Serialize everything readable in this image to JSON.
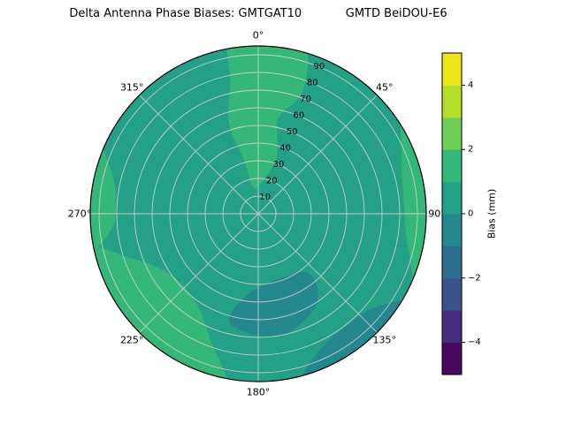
{
  "header": {
    "title": "Delta Antenna Phase Biases: GMTGAT10            GMTD BeiDOU-E6"
  },
  "chart_data": {
    "type": "heatmap",
    "projection": "polar",
    "title_left": "Delta Antenna Phase Biases: GMTGAT10",
    "title_right": "GMTD BeiDOU-E6",
    "angular_tick_labels": [
      "0°",
      "45°",
      "90°",
      "135°",
      "180°",
      "225°",
      "270°",
      "315°"
    ],
    "angular_tick_step_deg": 45,
    "radial_tick_labels": [
      "10",
      "20",
      "30",
      "40",
      "50",
      "60",
      "70",
      "80",
      "90"
    ],
    "radial_label_angle_deg": 22.5,
    "radial_axis_max": 95,
    "grid_color": "#d4d4d4",
    "outline_color": "#000000",
    "colorbar": {
      "label": "Bias (mm)",
      "range": [
        -5,
        5
      ],
      "levels": [
        -5,
        -4,
        -3,
        -2,
        -1,
        0,
        1,
        2,
        3,
        4,
        5
      ],
      "tick_values": [
        -4,
        -2,
        0,
        2,
        4
      ],
      "tick_labels": [
        "−4",
        "−2",
        "0",
        "2",
        "4"
      ],
      "band_colors_bottom_to_top": [
        "#46085c",
        "#472d7d",
        "#3a538b",
        "#2c6e8e",
        "#24878e",
        "#24a086",
        "#35b779",
        "#6ece58",
        "#b5de2b",
        "#ece51b"
      ]
    },
    "field": {
      "base_band_mm": "0 to 1",
      "base_color": "#24a086",
      "patches": [
        {
          "band_mm": "1 to 2",
          "color": "#35b779",
          "points_az_r": [
            [
              349,
              0.16
            ],
            [
              8,
              0.2
            ],
            [
              18,
              0.36
            ],
            [
              12,
              0.58
            ],
            [
              20,
              0.78
            ],
            [
              14,
              1.06
            ],
            [
              352,
              1.06
            ],
            [
              348,
              0.8
            ],
            [
              342,
              0.56
            ],
            [
              345,
              0.34
            ]
          ]
        },
        {
          "band_mm": "1 to 2",
          "color": "#35b779",
          "points_az_r": [
            [
              56,
              1.06
            ],
            [
              68,
              0.92
            ],
            [
              84,
              0.87
            ],
            [
              102,
              0.91
            ],
            [
              114,
              1.06
            ],
            [
              86,
              1.18
            ]
          ]
        },
        {
          "band_mm": "1 to 2",
          "color": "#35b779",
          "points_az_r": [
            [
              192,
              1.06
            ],
            [
              201,
              0.8
            ],
            [
              216,
              0.64
            ],
            [
              236,
              0.64
            ],
            [
              250,
              0.79
            ],
            [
              257,
              1.06
            ],
            [
              224,
              1.2
            ]
          ]
        },
        {
          "band_mm": "1 to 2",
          "color": "#35b779",
          "points_az_r": [
            [
              257,
              1.06
            ],
            [
              264,
              0.88
            ],
            [
              275,
              0.85
            ],
            [
              286,
              0.91
            ],
            [
              293,
              1.06
            ],
            [
              275,
              1.18
            ]
          ]
        },
        {
          "band_mm": "-1 to 0",
          "color": "#24878e",
          "points_az_r": [
            [
              140,
              0.46
            ],
            [
              166,
              0.41
            ],
            [
              189,
              0.5
            ],
            [
              194,
              0.68
            ],
            [
              170,
              0.74
            ],
            [
              147,
              0.64
            ]
          ]
        },
        {
          "band_mm": "-1 to 0",
          "color": "#24878e",
          "points_az_r": [
            [
              121,
              1.06
            ],
            [
              129,
              0.89
            ],
            [
              143,
              0.85
            ],
            [
              157,
              0.9
            ],
            [
              165,
              1.06
            ],
            [
              143,
              1.18
            ]
          ]
        }
      ]
    }
  }
}
